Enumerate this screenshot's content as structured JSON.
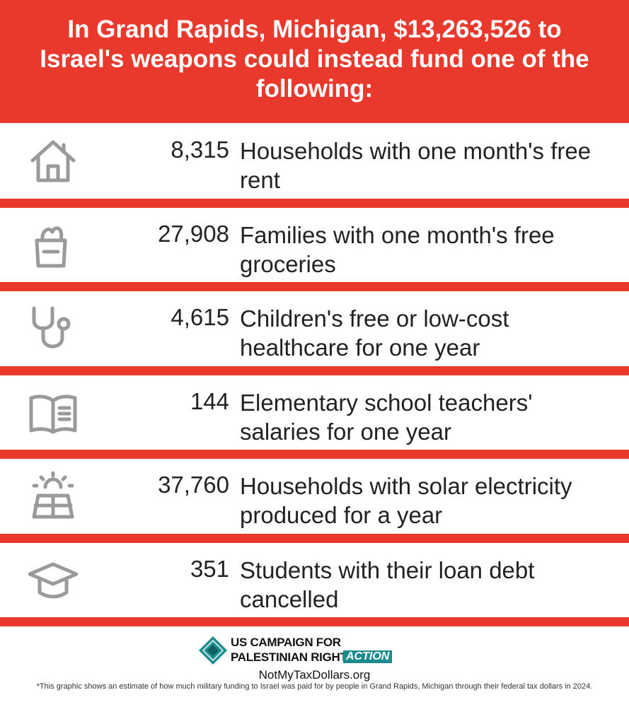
{
  "header": {
    "title": "In Grand Rapids, Michigan, $13,263,526 to Israel's weapons could instead fund one of the following:"
  },
  "items": [
    {
      "number": "8,315",
      "label": "Households with one month's free rent"
    },
    {
      "number": "27,908",
      "label": "Families with one month's free groceries"
    },
    {
      "number": "4,615",
      "label": "Children's free or low-cost healthcare for one year"
    },
    {
      "number": "144",
      "label": "Elementary school teachers' salaries for one year"
    },
    {
      "number": "37,760",
      "label": "Households with solar electricity produced for a year"
    },
    {
      "number": "351",
      "label": "Students with their loan debt cancelled"
    }
  ],
  "footer": {
    "org_line1": "US CAMPAIGN FOR",
    "org_line2": "PALESTINIAN RIGHTS",
    "org_badge": "ACTION",
    "site": "NotMyTaxDollars.org",
    "note": "*This graphic shows an estimate of how much military funding to Israel was paid for by people in  Grand Rapids, Michigan through their federal tax dollars in 2024."
  }
}
